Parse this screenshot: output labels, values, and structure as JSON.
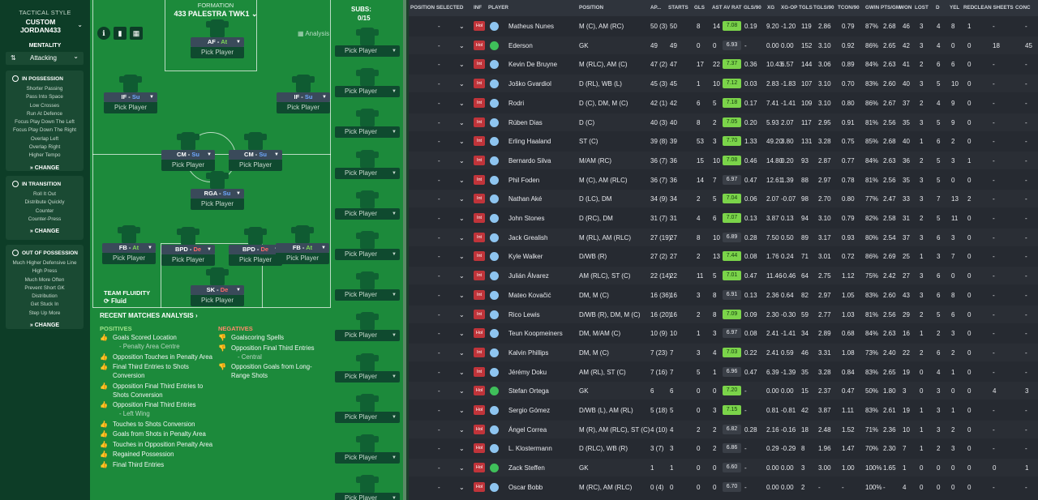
{
  "sidebar": {
    "tactical_style_label": "TACTICAL STYLE",
    "tactic_name": "CUSTOM JORDAN433",
    "mentality_label": "MENTALITY",
    "mentality_value": "Attacking",
    "in_possession": {
      "title": "IN POSSESSION",
      "items": [
        "Shorter Passing",
        "Pass Into Space",
        "Low Crosses",
        "Run At Defence",
        "Focus Play Down The Left",
        "Focus Play Down The Right",
        "Overlap Left",
        "Overlap Right",
        "Higher Tempo"
      ],
      "change": "CHANGE"
    },
    "in_transition": {
      "title": "IN TRANSITION",
      "items": [
        "Roll It Out",
        "Distribute Quickly",
        "Counter",
        "Counter-Press"
      ],
      "change": "CHANGE"
    },
    "out_of_possession": {
      "title": "OUT OF POSSESSION",
      "items": [
        "Much Higher Defensive Line",
        "High Press",
        "Much More Often",
        "Prevent Short GK",
        "Distribution",
        "Get Stuck In",
        "Step Up More"
      ],
      "change": "CHANGE"
    }
  },
  "pitch": {
    "formation_label": "FORMATION",
    "formation_name": "433 PALESTRA TWK1",
    "analysis_label": "Analysis",
    "team_fluidity_label": "TEAM FLUIDITY",
    "fluidity_value": "Fluid",
    "positions": [
      {
        "role": "AF",
        "duty": "At",
        "pick": "Pick Player"
      },
      {
        "role": "IF",
        "duty": "Su",
        "pick": "Pick Player"
      },
      {
        "role": "IF",
        "duty": "Su",
        "pick": "Pick Player"
      },
      {
        "role": "CM",
        "duty": "Su",
        "pick": "Pick Player"
      },
      {
        "role": "CM",
        "duty": "Su",
        "pick": "Pick Player"
      },
      {
        "role": "RGA",
        "duty": "Su",
        "pick": "Pick Player"
      },
      {
        "role": "FB",
        "duty": "At",
        "pick": "Pick Player"
      },
      {
        "role": "BPD",
        "duty": "De",
        "pick": "Pick Player"
      },
      {
        "role": "BPD",
        "duty": "De",
        "pick": "Pick Player"
      },
      {
        "role": "FB",
        "duty": "At",
        "pick": "Pick Player"
      },
      {
        "role": "SK",
        "duty": "De",
        "pick": "Pick Player"
      }
    ],
    "subs_label": "SUBS:",
    "subs_count": "0/15",
    "sub_pick": "Pick Player",
    "colors": {
      "attack": "#7ed957",
      "support": "#6fa8ff",
      "defend": "#ff6b6b"
    }
  },
  "analysis": {
    "title": "RECENT MATCHES ANALYSIS",
    "positives_label": "POSITIVES",
    "negatives_label": "NEGATIVES",
    "positives": [
      {
        "text": "Goals Scored Location",
        "sub": "- Penalty Area Centre"
      },
      {
        "text": "Opposition Touches in Penalty Area",
        "sub": ""
      },
      {
        "text": "Final Third Entries to Shots Conversion",
        "sub": ""
      },
      {
        "text": "Opposition Final Third Entries to Shots Conversion",
        "sub": ""
      },
      {
        "text": "Opposition Final Third Entries",
        "sub": "- Left Wing"
      },
      {
        "text": "Touches to Shots Conversion",
        "sub": ""
      },
      {
        "text": "Goals from Shots in Penalty Area",
        "sub": ""
      },
      {
        "text": "Touches in Opposition Penalty Area",
        "sub": ""
      },
      {
        "text": "Regained Possession",
        "sub": ""
      },
      {
        "text": "Final Third Entries",
        "sub": ""
      }
    ],
    "negatives": [
      {
        "text": "Goalscoring Spells",
        "sub": ""
      },
      {
        "text": "Opposition Final Third Entries",
        "sub": "- Central"
      },
      {
        "text": "Opposition Goals from Long-Range Shots",
        "sub": ""
      }
    ]
  },
  "table": {
    "headers": [
      "POSITION SELECTED",
      "INF",
      "PLAYER",
      "POSITION",
      "AP...",
      "STARTS",
      "GLS",
      "AST",
      "AV RAT",
      "GLS/90",
      "XG",
      "XG-OP",
      "TGLS",
      "TGLS/90",
      "TCON/90",
      "GWIN",
      "PTS/GM",
      "WON",
      "LOST",
      "D",
      "YEL",
      "RED",
      "CLEAN SHEETS",
      "CONC"
    ],
    "rows": [
      {
        "sel": "-",
        "inf": "Hol",
        "kit": "out",
        "name": "Matheus Nunes",
        "pos": "M (C), AM (RC)",
        "ap": "50 (3)",
        "starts": "50",
        "gls": "8",
        "ast": "14",
        "rat": "7.08",
        "gls90": "0.19",
        "xg": "9.20",
        "xgop": "-1.20",
        "tgls": "119",
        "tgls90": "2.86",
        "tcon90": "0.79",
        "gwin": "87%",
        "ptsgm": "2.68",
        "won": "46",
        "lost": "3",
        "d": "4",
        "yel": "8",
        "red": "1",
        "cs": "-",
        "conc": "-"
      },
      {
        "sel": "-",
        "inf": "Hol",
        "kit": "gk",
        "name": "Ederson",
        "pos": "GK",
        "ap": "49",
        "starts": "49",
        "gls": "0",
        "ast": "0",
        "rat": "6.93",
        "gls90": "-",
        "xg": "0.00",
        "xgop": "0.00",
        "tgls": "152",
        "tgls90": "3.10",
        "tcon90": "0.92",
        "gwin": "86%",
        "ptsgm": "2.65",
        "won": "42",
        "lost": "3",
        "d": "4",
        "yel": "0",
        "red": "0",
        "cs": "18",
        "conc": "45"
      },
      {
        "sel": "-",
        "inf": "Int",
        "kit": "out",
        "name": "Kevin De Bruyne",
        "pos": "M (RLC), AM (C)",
        "ap": "47 (2)",
        "starts": "47",
        "gls": "17",
        "ast": "22",
        "rat": "7.37",
        "gls90": "0.36",
        "xg": "10.43",
        "xgop": "6.57",
        "tgls": "144",
        "tgls90": "3.06",
        "tcon90": "0.89",
        "gwin": "84%",
        "ptsgm": "2.63",
        "won": "41",
        "lost": "2",
        "d": "6",
        "yel": "6",
        "red": "0",
        "cs": "-",
        "conc": "-"
      },
      {
        "sel": "-",
        "inf": "Int",
        "kit": "out",
        "name": "Joško Gvardiol",
        "pos": "D (RL), WB (L)",
        "ap": "45 (3)",
        "starts": "45",
        "gls": "1",
        "ast": "10",
        "rat": "7.12",
        "gls90": "0.03",
        "xg": "2.83",
        "xgop": "-1.83",
        "tgls": "107",
        "tgls90": "3.10",
        "tcon90": "0.70",
        "gwin": "83%",
        "ptsgm": "2.60",
        "won": "40",
        "lost": "3",
        "d": "5",
        "yel": "10",
        "red": "0",
        "cs": "-",
        "conc": "-"
      },
      {
        "sel": "-",
        "inf": "Int",
        "kit": "out",
        "name": "Rodri",
        "pos": "D (C), DM, M (C)",
        "ap": "42 (1)",
        "starts": "42",
        "gls": "6",
        "ast": "5",
        "rat": "7.18",
        "gls90": "0.17",
        "xg": "7.41",
        "xgop": "-1.41",
        "tgls": "109",
        "tgls90": "3.10",
        "tcon90": "0.80",
        "gwin": "86%",
        "ptsgm": "2.67",
        "won": "37",
        "lost": "2",
        "d": "4",
        "yel": "9",
        "red": "0",
        "cs": "-",
        "conc": "-"
      },
      {
        "sel": "-",
        "inf": "Int",
        "kit": "out",
        "name": "Rúben Dias",
        "pos": "D (C)",
        "ap": "40 (3)",
        "starts": "40",
        "gls": "8",
        "ast": "2",
        "rat": "7.05",
        "gls90": "0.20",
        "xg": "5.93",
        "xgop": "2.07",
        "tgls": "117",
        "tgls90": "2.95",
        "tcon90": "0.91",
        "gwin": "81%",
        "ptsgm": "2.56",
        "won": "35",
        "lost": "3",
        "d": "5",
        "yel": "9",
        "red": "0",
        "cs": "-",
        "conc": "-"
      },
      {
        "sel": "-",
        "inf": "Int",
        "kit": "out",
        "name": "Erling Haaland",
        "pos": "ST (C)",
        "ap": "39 (8)",
        "starts": "39",
        "gls": "53",
        "ast": "3",
        "rat": "7.70",
        "gls90": "1.33",
        "xg": "49.20",
        "xgop": "3.80",
        "tgls": "131",
        "tgls90": "3.28",
        "tcon90": "0.75",
        "gwin": "85%",
        "ptsgm": "2.68",
        "won": "40",
        "lost": "1",
        "d": "6",
        "yel": "2",
        "red": "0",
        "cs": "-",
        "conc": "-"
      },
      {
        "sel": "-",
        "inf": "Int",
        "kit": "out",
        "name": "Bernardo Silva",
        "pos": "M/AM (RC)",
        "ap": "36 (7)",
        "starts": "36",
        "gls": "15",
        "ast": "10",
        "rat": "7.08",
        "gls90": "0.46",
        "xg": "14.80",
        "xgop": "0.20",
        "tgls": "93",
        "tgls90": "2.87",
        "tcon90": "0.77",
        "gwin": "84%",
        "ptsgm": "2.63",
        "won": "36",
        "lost": "2",
        "d": "5",
        "yel": "3",
        "red": "1",
        "cs": "-",
        "conc": "-"
      },
      {
        "sel": "-",
        "inf": "Int",
        "kit": "out",
        "name": "Phil Foden",
        "pos": "M (C), AM (RLC)",
        "ap": "36 (7)",
        "starts": "36",
        "gls": "14",
        "ast": "7",
        "rat": "6.97",
        "gls90": "0.47",
        "xg": "12.61",
        "xgop": "1.39",
        "tgls": "88",
        "tgls90": "2.97",
        "tcon90": "0.78",
        "gwin": "81%",
        "ptsgm": "2.56",
        "won": "35",
        "lost": "3",
        "d": "5",
        "yel": "0",
        "red": "0",
        "cs": "-",
        "conc": "-"
      },
      {
        "sel": "-",
        "inf": "Int",
        "kit": "out",
        "name": "Nathan Aké",
        "pos": "D (LC), DM",
        "ap": "34 (9)",
        "starts": "34",
        "gls": "2",
        "ast": "5",
        "rat": "7.04",
        "gls90": "0.06",
        "xg": "2.07",
        "xgop": "-0.07",
        "tgls": "98",
        "tgls90": "2.70",
        "tcon90": "0.80",
        "gwin": "77%",
        "ptsgm": "2.47",
        "won": "33",
        "lost": "3",
        "d": "7",
        "yel": "13",
        "red": "2",
        "cs": "-",
        "conc": "-"
      },
      {
        "sel": "-",
        "inf": "Int",
        "kit": "out",
        "name": "John Stones",
        "pos": "D (RC), DM",
        "ap": "31 (7)",
        "starts": "31",
        "gls": "4",
        "ast": "6",
        "rat": "7.07",
        "gls90": "0.13",
        "xg": "3.87",
        "xgop": "0.13",
        "tgls": "94",
        "tgls90": "3.10",
        "tcon90": "0.79",
        "gwin": "82%",
        "ptsgm": "2.58",
        "won": "31",
        "lost": "2",
        "d": "5",
        "yel": "11",
        "red": "0",
        "cs": "-",
        "conc": "-"
      },
      {
        "sel": "-",
        "inf": "Int",
        "kit": "out",
        "name": "Jack Grealish",
        "pos": "M (RL), AM (RLC)",
        "ap": "27 (19)",
        "starts": "27",
        "gls": "8",
        "ast": "10",
        "rat": "6.89",
        "gls90": "0.28",
        "xg": "7.50",
        "xgop": "0.50",
        "tgls": "89",
        "tgls90": "3.17",
        "tcon90": "0.93",
        "gwin": "80%",
        "ptsgm": "2.54",
        "won": "37",
        "lost": "3",
        "d": "6",
        "yel": "3",
        "red": "0",
        "cs": "-",
        "conc": "-"
      },
      {
        "sel": "-",
        "inf": "Int",
        "kit": "out",
        "name": "Kyle Walker",
        "pos": "D/WB (R)",
        "ap": "27 (2)",
        "starts": "27",
        "gls": "2",
        "ast": "13",
        "rat": "7.44",
        "gls90": "0.08",
        "xg": "1.76",
        "xgop": "0.24",
        "tgls": "71",
        "tgls90": "3.01",
        "tcon90": "0.72",
        "gwin": "86%",
        "ptsgm": "2.69",
        "won": "25",
        "lost": "1",
        "d": "3",
        "yel": "7",
        "red": "0",
        "cs": "-",
        "conc": "-"
      },
      {
        "sel": "-",
        "inf": "Int",
        "kit": "out",
        "name": "Julián Álvarez",
        "pos": "AM (RLC), ST (C)",
        "ap": "22 (14)",
        "starts": "22",
        "gls": "11",
        "ast": "5",
        "rat": "7.01",
        "gls90": "0.47",
        "xg": "11.46",
        "xgop": "-0.46",
        "tgls": "64",
        "tgls90": "2.75",
        "tcon90": "1.12",
        "gwin": "75%",
        "ptsgm": "2.42",
        "won": "27",
        "lost": "3",
        "d": "6",
        "yel": "0",
        "red": "0",
        "cs": "-",
        "conc": "-"
      },
      {
        "sel": "-",
        "inf": "Int",
        "kit": "out",
        "name": "Mateo Kovačić",
        "pos": "DM, M (C)",
        "ap": "16 (36)",
        "starts": "16",
        "gls": "3",
        "ast": "8",
        "rat": "6.91",
        "gls90": "0.13",
        "xg": "2.36",
        "xgop": "0.64",
        "tgls": "82",
        "tgls90": "2.97",
        "tcon90": "1.05",
        "gwin": "83%",
        "ptsgm": "2.60",
        "won": "43",
        "lost": "3",
        "d": "6",
        "yel": "8",
        "red": "0",
        "cs": "-",
        "conc": "-"
      },
      {
        "sel": "-",
        "inf": "Int",
        "kit": "out",
        "name": "Rico Lewis",
        "pos": "D/WB (R), DM, M (C)",
        "ap": "16 (20)",
        "starts": "16",
        "gls": "2",
        "ast": "8",
        "rat": "7.09",
        "gls90": "0.09",
        "xg": "2.30",
        "xgop": "-0.30",
        "tgls": "59",
        "tgls90": "2.77",
        "tcon90": "1.03",
        "gwin": "81%",
        "ptsgm": "2.56",
        "won": "29",
        "lost": "2",
        "d": "5",
        "yel": "6",
        "red": "0",
        "cs": "-",
        "conc": "-"
      },
      {
        "sel": "-",
        "inf": "Hol",
        "kit": "out",
        "name": "Teun Koopmeiners",
        "pos": "DM, M/AM (C)",
        "ap": "10 (9)",
        "starts": "10",
        "gls": "1",
        "ast": "3",
        "rat": "6.97",
        "gls90": "0.08",
        "xg": "2.41",
        "xgop": "-1.41",
        "tgls": "34",
        "tgls90": "2.89",
        "tcon90": "0.68",
        "gwin": "84%",
        "ptsgm": "2.63",
        "won": "16",
        "lost": "1",
        "d": "2",
        "yel": "3",
        "red": "0",
        "cs": "-",
        "conc": "-"
      },
      {
        "sel": "-",
        "inf": "Int",
        "kit": "out",
        "name": "Kalvin Phillips",
        "pos": "DM, M (C)",
        "ap": "7 (23)",
        "starts": "7",
        "gls": "3",
        "ast": "4",
        "rat": "7.03",
        "gls90": "0.22",
        "xg": "2.41",
        "xgop": "0.59",
        "tgls": "46",
        "tgls90": "3.31",
        "tcon90": "1.08",
        "gwin": "73%",
        "ptsgm": "2.40",
        "won": "22",
        "lost": "2",
        "d": "6",
        "yel": "2",
        "red": "0",
        "cs": "-",
        "conc": "-"
      },
      {
        "sel": "-",
        "inf": "Int",
        "kit": "out",
        "name": "Jérémy Doku",
        "pos": "AM (RL), ST (C)",
        "ap": "7 (16)",
        "starts": "7",
        "gls": "5",
        "ast": "1",
        "rat": "6.96",
        "gls90": "0.47",
        "xg": "6.39",
        "xgop": "-1.39",
        "tgls": "35",
        "tgls90": "3.28",
        "tcon90": "0.84",
        "gwin": "83%",
        "ptsgm": "2.65",
        "won": "19",
        "lost": "0",
        "d": "4",
        "yel": "1",
        "red": "0",
        "cs": "-",
        "conc": "-"
      },
      {
        "sel": "-",
        "inf": "Hol",
        "kit": "gk",
        "name": "Stefan Ortega",
        "pos": "GK",
        "ap": "6",
        "starts": "6",
        "gls": "0",
        "ast": "0",
        "rat": "7.20",
        "gls90": "-",
        "xg": "0.00",
        "xgop": "0.00",
        "tgls": "15",
        "tgls90": "2.37",
        "tcon90": "0.47",
        "gwin": "50%",
        "ptsgm": "1.80",
        "won": "3",
        "lost": "0",
        "d": "3",
        "yel": "0",
        "red": "0",
        "cs": "4",
        "conc": "3"
      },
      {
        "sel": "-",
        "inf": "Hol",
        "kit": "out",
        "name": "Sergio Gómez",
        "pos": "D/WB (L), AM (RL)",
        "ap": "5 (18)",
        "starts": "5",
        "gls": "0",
        "ast": "3",
        "rat": "7.15",
        "gls90": "-",
        "xg": "0.81",
        "xgop": "-0.81",
        "tgls": "42",
        "tgls90": "3.87",
        "tcon90": "1.11",
        "gwin": "83%",
        "ptsgm": "2.61",
        "won": "19",
        "lost": "1",
        "d": "3",
        "yel": "1",
        "red": "0",
        "cs": "-",
        "conc": "-"
      },
      {
        "sel": "-",
        "inf": "Hol",
        "kit": "out",
        "name": "Ángel Correa",
        "pos": "M (R), AM (RLC), ST (C)",
        "ap": "4 (10)",
        "starts": "4",
        "gls": "2",
        "ast": "2",
        "rat": "6.82",
        "gls90": "0.28",
        "xg": "2.16",
        "xgop": "-0.16",
        "tgls": "18",
        "tgls90": "2.48",
        "tcon90": "1.52",
        "gwin": "71%",
        "ptsgm": "2.36",
        "won": "10",
        "lost": "1",
        "d": "3",
        "yel": "2",
        "red": "0",
        "cs": "-",
        "conc": "-"
      },
      {
        "sel": "-",
        "inf": "Hol",
        "kit": "out",
        "name": "L. Klostermann",
        "pos": "D (RLC), WB (R)",
        "ap": "3 (7)",
        "starts": "3",
        "gls": "0",
        "ast": "2",
        "rat": "6.86",
        "gls90": "-",
        "xg": "0.29",
        "xgop": "-0.29",
        "tgls": "8",
        "tgls90": "1.96",
        "tcon90": "1.47",
        "gwin": "70%",
        "ptsgm": "2.30",
        "won": "7",
        "lost": "1",
        "d": "2",
        "yel": "3",
        "red": "0",
        "cs": "-",
        "conc": "-"
      },
      {
        "sel": "-",
        "inf": "Hol",
        "kit": "gk",
        "name": "Zack Steffen",
        "pos": "GK",
        "ap": "1",
        "starts": "1",
        "gls": "0",
        "ast": "0",
        "rat": "6.60",
        "gls90": "-",
        "xg": "0.00",
        "xgop": "0.00",
        "tgls": "3",
        "tgls90": "3.00",
        "tcon90": "1.00",
        "gwin": "100%",
        "ptsgm": "1.65",
        "won": "1",
        "lost": "0",
        "d": "0",
        "yel": "0",
        "red": "0",
        "cs": "0",
        "conc": "1"
      },
      {
        "sel": "-",
        "inf": "Hol",
        "kit": "out",
        "name": "Oscar Bobb",
        "pos": "M (RC), AM (RLC)",
        "ap": "0 (4)",
        "starts": "0",
        "gls": "0",
        "ast": "0",
        "rat": "6.70",
        "gls90": "-",
        "xg": "0.00",
        "xgop": "0.00",
        "tgls": "2",
        "tgls90": "-",
        "tcon90": "-",
        "gwin": "100%",
        "ptsgm": "-",
        "won": "4",
        "lost": "0",
        "d": "0",
        "yel": "0",
        "red": "0",
        "cs": "-",
        "conc": "-"
      }
    ]
  }
}
